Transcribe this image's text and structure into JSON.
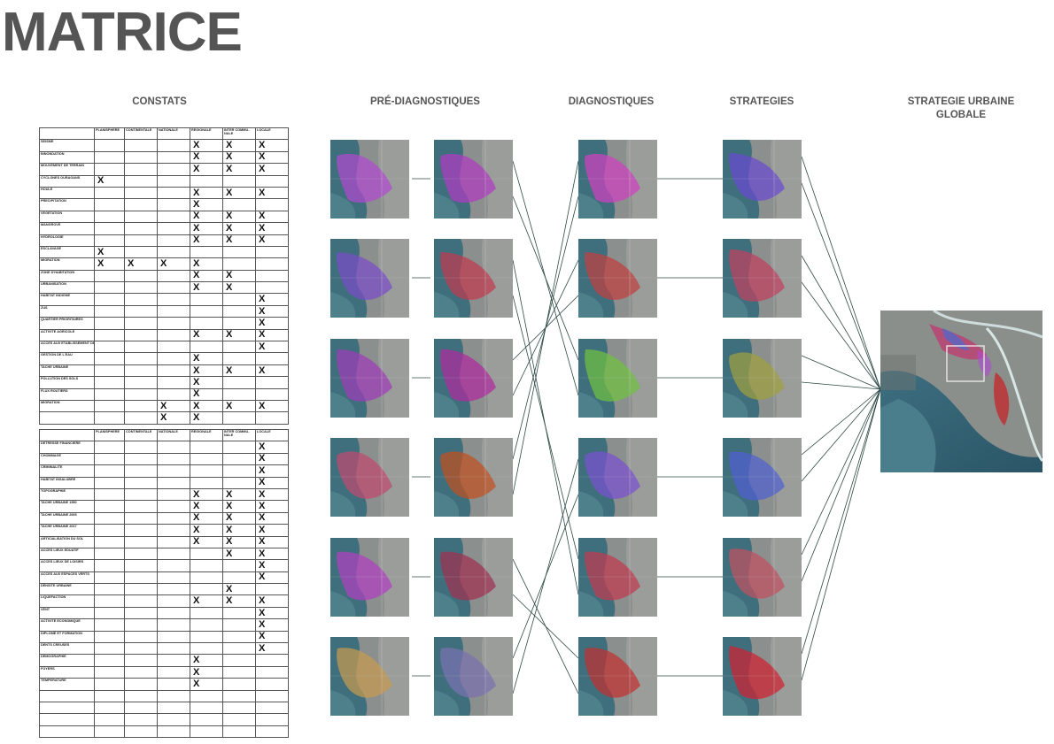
{
  "title": "MATRICE",
  "columns": {
    "constats": "CONSTATS",
    "pre_diagnostiques": "PRÉ-DIAGNOSTIQUES",
    "diagnostiques": "DIAGNOSTIQUES",
    "strategies": "STRATEGIES",
    "strategie_globale": "STRATEGIE URBAINE GLOBALE"
  },
  "table_headers": [
    "PLANISPHERE",
    "CONTINENTALE",
    "NATIONALE",
    "REGIONALE",
    "INTER COMMU-NALE",
    "LOCALE"
  ],
  "table1": [
    {
      "label": "SEISME",
      "marks": [
        0,
        0,
        0,
        1,
        1,
        1
      ]
    },
    {
      "label": "INNONDATION",
      "marks": [
        0,
        0,
        0,
        1,
        1,
        1
      ]
    },
    {
      "label": "MOUVEMENT DE TERRAIN",
      "marks": [
        0,
        0,
        0,
        1,
        1,
        1
      ]
    },
    {
      "label": "CYCLONES OURAGANS",
      "marks": [
        1,
        0,
        0,
        0,
        0,
        0
      ]
    },
    {
      "label": "HOULE",
      "marks": [
        0,
        0,
        0,
        1,
        1,
        1
      ]
    },
    {
      "label": "PRECIPITATION",
      "marks": [
        0,
        0,
        0,
        1,
        0,
        0
      ]
    },
    {
      "label": "VEGETATION",
      "marks": [
        0,
        0,
        0,
        1,
        1,
        1
      ]
    },
    {
      "label": "MANGROVE",
      "marks": [
        0,
        0,
        0,
        1,
        1,
        1
      ]
    },
    {
      "label": "HYDROLOGIE",
      "marks": [
        0,
        0,
        0,
        1,
        1,
        1
      ]
    },
    {
      "label": "ESCLAVAGE",
      "marks": [
        1,
        0,
        0,
        0,
        0,
        0
      ]
    },
    {
      "label": "MIGRATION",
      "marks": [
        1,
        1,
        1,
        1,
        0,
        0
      ]
    },
    {
      "label": "ZONE D'HABITATION",
      "marks": [
        0,
        0,
        0,
        1,
        1,
        0
      ]
    },
    {
      "label": "URBANISATION",
      "marks": [
        0,
        0,
        0,
        1,
        1,
        0
      ]
    },
    {
      "label": "HABITAT INDIGNE",
      "marks": [
        0,
        0,
        0,
        0,
        0,
        1
      ]
    },
    {
      "label": "ZUS",
      "marks": [
        0,
        0,
        0,
        0,
        0,
        1
      ]
    },
    {
      "label": "QUARTIER PRIORITAIRES",
      "marks": [
        0,
        0,
        0,
        0,
        0,
        1
      ]
    },
    {
      "label": "ACTIVITE AGRICOLE",
      "marks": [
        0,
        0,
        0,
        1,
        1,
        1
      ]
    },
    {
      "label": "ACCES AUX ETABLISSEMENT DE SANTE",
      "marks": [
        0,
        0,
        0,
        0,
        0,
        1
      ]
    },
    {
      "label": "GESTION DE L'EAU",
      "marks": [
        0,
        0,
        0,
        1,
        0,
        0
      ]
    },
    {
      "label": "TACHE URBAINE",
      "marks": [
        0,
        0,
        0,
        1,
        1,
        1
      ]
    },
    {
      "label": "POLLUTION DES SOLS",
      "marks": [
        0,
        0,
        0,
        1,
        0,
        0
      ]
    },
    {
      "label": "FLUX ROUTIERS",
      "marks": [
        0,
        0,
        0,
        1,
        0,
        0
      ]
    },
    {
      "label": "MIGRATION",
      "marks": [
        0,
        0,
        1,
        1,
        1,
        1
      ]
    },
    {
      "label": "",
      "marks": [
        0,
        0,
        1,
        1,
        0,
        0
      ]
    }
  ],
  "table2": [
    {
      "label": "DETRESSE FINANCIERE",
      "marks": [
        0,
        0,
        0,
        0,
        0,
        1
      ]
    },
    {
      "label": "CHOMMAGE",
      "marks": [
        0,
        0,
        0,
        0,
        0,
        1
      ]
    },
    {
      "label": "CRIMINALITE",
      "marks": [
        0,
        0,
        0,
        0,
        0,
        1
      ]
    },
    {
      "label": "HABITAT INSALUBRE",
      "marks": [
        0,
        0,
        0,
        0,
        0,
        1
      ]
    },
    {
      "label": "TOPOGRAPHIE",
      "marks": [
        0,
        0,
        0,
        1,
        1,
        1
      ]
    },
    {
      "label": "TACHE URBAINE 1950",
      "marks": [
        0,
        0,
        0,
        1,
        1,
        1
      ]
    },
    {
      "label": "TACHE URBAINE 2005",
      "marks": [
        0,
        0,
        0,
        1,
        1,
        1
      ]
    },
    {
      "label": "TACHE URBAINE 2017",
      "marks": [
        0,
        0,
        0,
        1,
        1,
        1
      ]
    },
    {
      "label": "ARTICIALISATION DU SOL",
      "marks": [
        0,
        0,
        0,
        1,
        1,
        1
      ]
    },
    {
      "label": "ACCES LIEUX EDUATIF",
      "marks": [
        0,
        0,
        0,
        0,
        1,
        1
      ]
    },
    {
      "label": "ACCES LIEUX DE LOISIRS",
      "marks": [
        0,
        0,
        0,
        0,
        0,
        1
      ]
    },
    {
      "label": "ACCES AUX ESPACES VERTS",
      "marks": [
        0,
        0,
        0,
        0,
        0,
        1
      ]
    },
    {
      "label": "DENSITE URBAINE",
      "marks": [
        0,
        0,
        0,
        0,
        1,
        0
      ]
    },
    {
      "label": "LIQUEFACTION",
      "marks": [
        0,
        0,
        0,
        1,
        1,
        1
      ]
    },
    {
      "label": "VENT",
      "marks": [
        0,
        0,
        0,
        0,
        0,
        1
      ]
    },
    {
      "label": "ACTIVITE ECONOMIQUE",
      "marks": [
        0,
        0,
        0,
        0,
        0,
        1
      ]
    },
    {
      "label": "DIPLOME ET FORMATION",
      "marks": [
        0,
        0,
        0,
        0,
        0,
        1
      ]
    },
    {
      "label": "DENTS CREUSES",
      "marks": [
        0,
        0,
        0,
        0,
        0,
        1
      ]
    },
    {
      "label": "DEMOGRAPHIE",
      "marks": [
        0,
        0,
        0,
        1,
        0,
        0
      ]
    },
    {
      "label": "FOYERS",
      "marks": [
        0,
        0,
        0,
        1,
        0,
        0
      ]
    },
    {
      "label": "TEMPERATURE",
      "marks": [
        0,
        0,
        0,
        1,
        0,
        0
      ]
    },
    {
      "label": "",
      "marks": [
        0,
        0,
        0,
        0,
        0,
        0
      ]
    },
    {
      "label": "",
      "marks": [
        0,
        0,
        0,
        0,
        0,
        0
      ]
    },
    {
      "label": "",
      "marks": [
        0,
        0,
        0,
        0,
        0,
        0
      ]
    },
    {
      "label": "",
      "marks": [
        0,
        0,
        0,
        0,
        0,
        0
      ]
    }
  ],
  "mark_symbol": "X",
  "map_overlays": {
    "pre1": [
      "#b04ad0",
      "#7a4cc8",
      "#a03cb8",
      "#c04a70",
      "#b040c0",
      "#c89a50"
    ],
    "pre2": [
      "#b03ac0",
      "#c03a50",
      "#b02aa0",
      "#c05020",
      "#a03050",
      "#7a70b0"
    ],
    "diag": [
      "#d040c0",
      "#c04040",
      "#70c040",
      "#7a50d0",
      "#c03a50",
      "#c03030"
    ],
    "strat": [
      "#6a4ad0",
      "#c04060",
      "#a0a040",
      "#5060d0",
      "#c05060",
      "#d02030"
    ]
  },
  "connections": [
    [
      1,
      3
    ],
    [
      2,
      5
    ],
    [
      3,
      2
    ],
    [
      4,
      1
    ],
    [
      5,
      6
    ],
    [
      6,
      4
    ]
  ],
  "strategy_links": [
    [
      1,
      1
    ],
    [
      2,
      2
    ],
    [
      3,
      3
    ],
    [
      4,
      4
    ],
    [
      5,
      5
    ],
    [
      6,
      6
    ]
  ]
}
